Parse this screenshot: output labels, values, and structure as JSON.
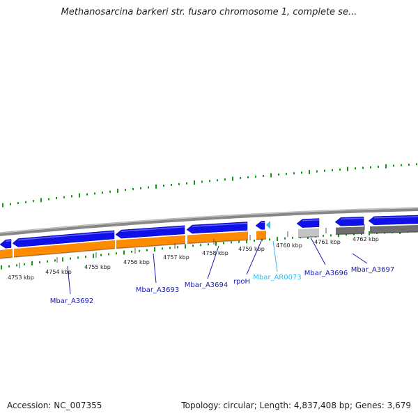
{
  "title": "Methanosarcina barkeri str. fusaro chromosome 1, complete se...",
  "footer": {
    "accession": "Accession: NC_007355",
    "summary": "Topology: circular; Length: 4,837,408 bp; Genes: 3,679"
  },
  "colors": {
    "forward_gene": "#1010e8",
    "cds_track": "#ff8c00",
    "highlight_gene": "#33bbee",
    "label_blue": "#1a1ab0",
    "backbone": "#888888",
    "gc_plot": "#119911"
  },
  "ticks": [
    {
      "label": "4753 kbp"
    },
    {
      "label": "4754 kbp"
    },
    {
      "label": "4755 kbp"
    },
    {
      "label": "4756 kbp"
    },
    {
      "label": "4757 kbp"
    },
    {
      "label": "4758 kbp"
    },
    {
      "label": "4759 kbp"
    },
    {
      "label": "4760 kbp"
    },
    {
      "label": "4761 kbp"
    },
    {
      "label": "4762 kbp"
    }
  ],
  "gene_labels": [
    {
      "label": "Mbar_A3692",
      "kind": "gene"
    },
    {
      "label": "Mbar_A3693",
      "kind": "gene"
    },
    {
      "label": "Mbar_A3694",
      "kind": "gene"
    },
    {
      "label": "rpoH",
      "kind": "gene"
    },
    {
      "label": "Mbar_AR0073",
      "kind": "rna"
    },
    {
      "label": "Mbar_A3696",
      "kind": "gene"
    },
    {
      "label": "Mbar_A3697",
      "kind": "gene"
    }
  ]
}
